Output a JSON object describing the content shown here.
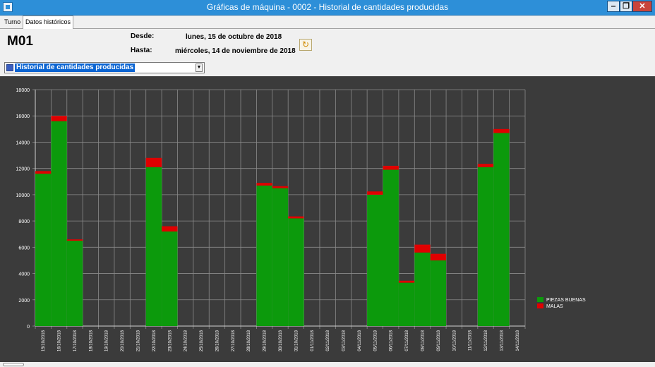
{
  "window": {
    "title": "Gráficas de máquina - 0002 - Historial de cantidades producidas"
  },
  "tabs": [
    {
      "label": "Turno"
    },
    {
      "label": "Datos históricos"
    }
  ],
  "machine": {
    "id": "M01"
  },
  "range": {
    "desde_label": "Desde:",
    "desde_value": "lunes, 15 de octubre de 2018",
    "hasta_label": "Hasta:",
    "hasta_value": "miércoles, 14 de noviembre de 2018"
  },
  "view_select": {
    "selected": "Historial de cantidades producidas"
  },
  "colors": {
    "buenas": "#0c9a0c",
    "malas": "#e00000",
    "background": "#3b3b3b",
    "grid": "#8a8a8a",
    "text": "#ffffff"
  },
  "chart_data": {
    "type": "bar",
    "stacked": true,
    "ylim": [
      0,
      18000
    ],
    "yticks": [
      "0",
      "2000",
      "4000",
      "6000",
      "8000",
      "10000",
      "12000",
      "14000",
      "16000",
      "18000"
    ],
    "grid": true,
    "legend": "right",
    "categories": [
      "15/10/2018",
      "16/10/2018",
      "17/10/2018",
      "18/10/2018",
      "19/10/2018",
      "20/10/2018",
      "21/10/2018",
      "22/10/2018",
      "23/10/2018",
      "24/10/2018",
      "25/10/2018",
      "26/10/2018",
      "27/10/2018",
      "28/10/2018",
      "29/10/2018",
      "30/10/2018",
      "31/10/2018",
      "01/11/2018",
      "02/11/2018",
      "03/11/2018",
      "04/11/2018",
      "05/11/2018",
      "06/11/2018",
      "07/11/2018",
      "08/11/2018",
      "09/11/2018",
      "10/11/2018",
      "11/11/2018",
      "12/11/2018",
      "13/11/2018",
      "14/11/2018"
    ],
    "series": [
      {
        "name": "PIEZAS BUENAS",
        "values": [
          11600,
          15600,
          6500,
          0,
          0,
          0,
          0,
          12100,
          7200,
          0,
          0,
          0,
          0,
          0,
          10700,
          10500,
          8200,
          0,
          0,
          0,
          0,
          10000,
          11900,
          3300,
          5600,
          5000,
          0,
          0,
          12100,
          14700,
          0
        ]
      },
      {
        "name": "MALAS",
        "values": [
          200,
          400,
          100,
          0,
          0,
          0,
          0,
          700,
          400,
          0,
          0,
          0,
          0,
          0,
          200,
          150,
          150,
          0,
          0,
          0,
          0,
          250,
          300,
          150,
          600,
          500,
          0,
          0,
          250,
          300,
          0
        ]
      }
    ]
  }
}
